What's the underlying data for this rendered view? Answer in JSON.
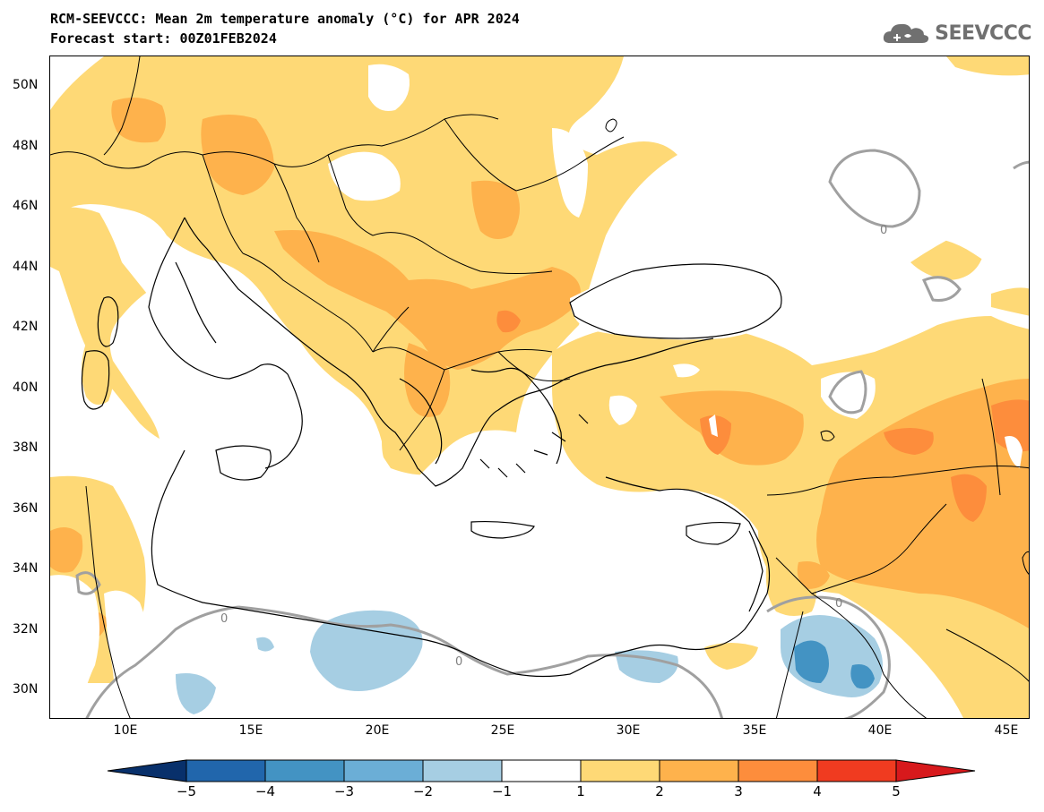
{
  "title": {
    "line1": "RCM-SEEVCCC: Mean 2m temperature anomaly (°C) for APR 2024",
    "line2": "Forecast start: 00Z01FEB2024"
  },
  "logo": {
    "text": "SEEVCCC",
    "icon": "cloud-icon",
    "color": "#707070"
  },
  "map": {
    "lat_labels": [
      "50N",
      "48N",
      "46N",
      "44N",
      "42N",
      "40N",
      "38N",
      "36N",
      "34N",
      "32N",
      "30N"
    ],
    "lon_labels": [
      "10E",
      "15E",
      "20E",
      "25E",
      "30E",
      "35E",
      "40E",
      "45E"
    ],
    "contour_label": "0"
  },
  "colorbar": {
    "labels": [
      "−5",
      "−4",
      "−3",
      "−2",
      "−1",
      "1",
      "2",
      "3",
      "4",
      "5"
    ],
    "colors": [
      "#08306b",
      "#2166ac",
      "#4393c3",
      "#6baed6",
      "#a6cee3",
      "#ffffff",
      "#fed976",
      "#feb24c",
      "#fd8d3c",
      "#f03b20",
      "#d7191c"
    ]
  }
}
